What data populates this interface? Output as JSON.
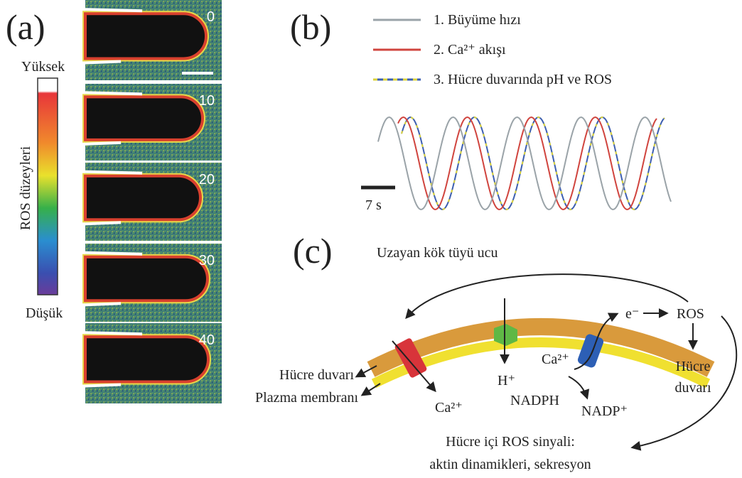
{
  "panels": {
    "a": {
      "label": "(a)",
      "colorbar": {
        "high": "Yüksek",
        "low": "Düşük",
        "title": "ROS düzeyleri"
      },
      "frames": [
        0,
        10,
        20,
        30,
        40
      ]
    },
    "b": {
      "label": "(b)",
      "legend": [
        "1. Büyüme hızı",
        "2. Ca²⁺ akışı",
        "3. Hücre duvarında pH ve ROS"
      ],
      "scale_bar": "7 s"
    },
    "c": {
      "label": "(c)",
      "title": "Uzayan kök tüyü ucu",
      "labels": {
        "e": "e⁻",
        "ros": "ROS",
        "ros_wall_1": "Hücre",
        "ros_wall_2": "duvarı",
        "h": "H⁺",
        "ca_in": "Ca²⁺",
        "nadph": "NADPH",
        "nadp": "NADP⁺",
        "ca_out": "Ca²⁺",
        "cell_wall": "Hücre duvarı",
        "plasma_membrane": "Plazma membranı",
        "signal_1": "Hücre içi ROS sinyali:",
        "signal_2": "aktin dinamikleri, sekresyon"
      }
    }
  }
}
